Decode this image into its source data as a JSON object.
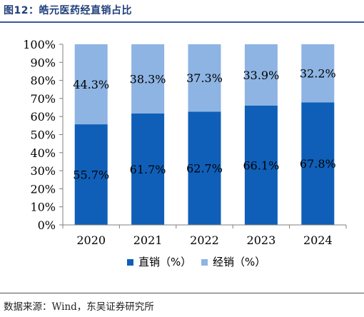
{
  "figure": {
    "title": "图12：皓元医药经直销占比",
    "source": "数据来源：Wind，东吴证券研究所"
  },
  "colors": {
    "direct": "#0f5fb8",
    "distribution": "#8db4e2",
    "axis": "#7f7f7f",
    "title": "#1f3f7a"
  },
  "chart_data": {
    "type": "bar",
    "stacked": true,
    "categories": [
      "2020",
      "2021",
      "2022",
      "2023",
      "2024"
    ],
    "series": [
      {
        "name": "直销（%）",
        "values": [
          55.7,
          61.7,
          62.7,
          66.1,
          67.8
        ],
        "labels": [
          "55.7%",
          "61.7%",
          "62.7%",
          "66.1%",
          "67.8%"
        ]
      },
      {
        "name": "经销（%）",
        "values": [
          44.3,
          38.3,
          37.3,
          33.9,
          32.2
        ],
        "labels": [
          "44.3%",
          "38.3%",
          "37.3%",
          "33.9%",
          "32.2%"
        ]
      }
    ],
    "yticks": [
      "0%",
      "10%",
      "20%",
      "30%",
      "40%",
      "50%",
      "60%",
      "70%",
      "80%",
      "90%",
      "100%"
    ],
    "ylim": [
      0,
      100
    ],
    "grid": false,
    "legend": "bottom"
  }
}
